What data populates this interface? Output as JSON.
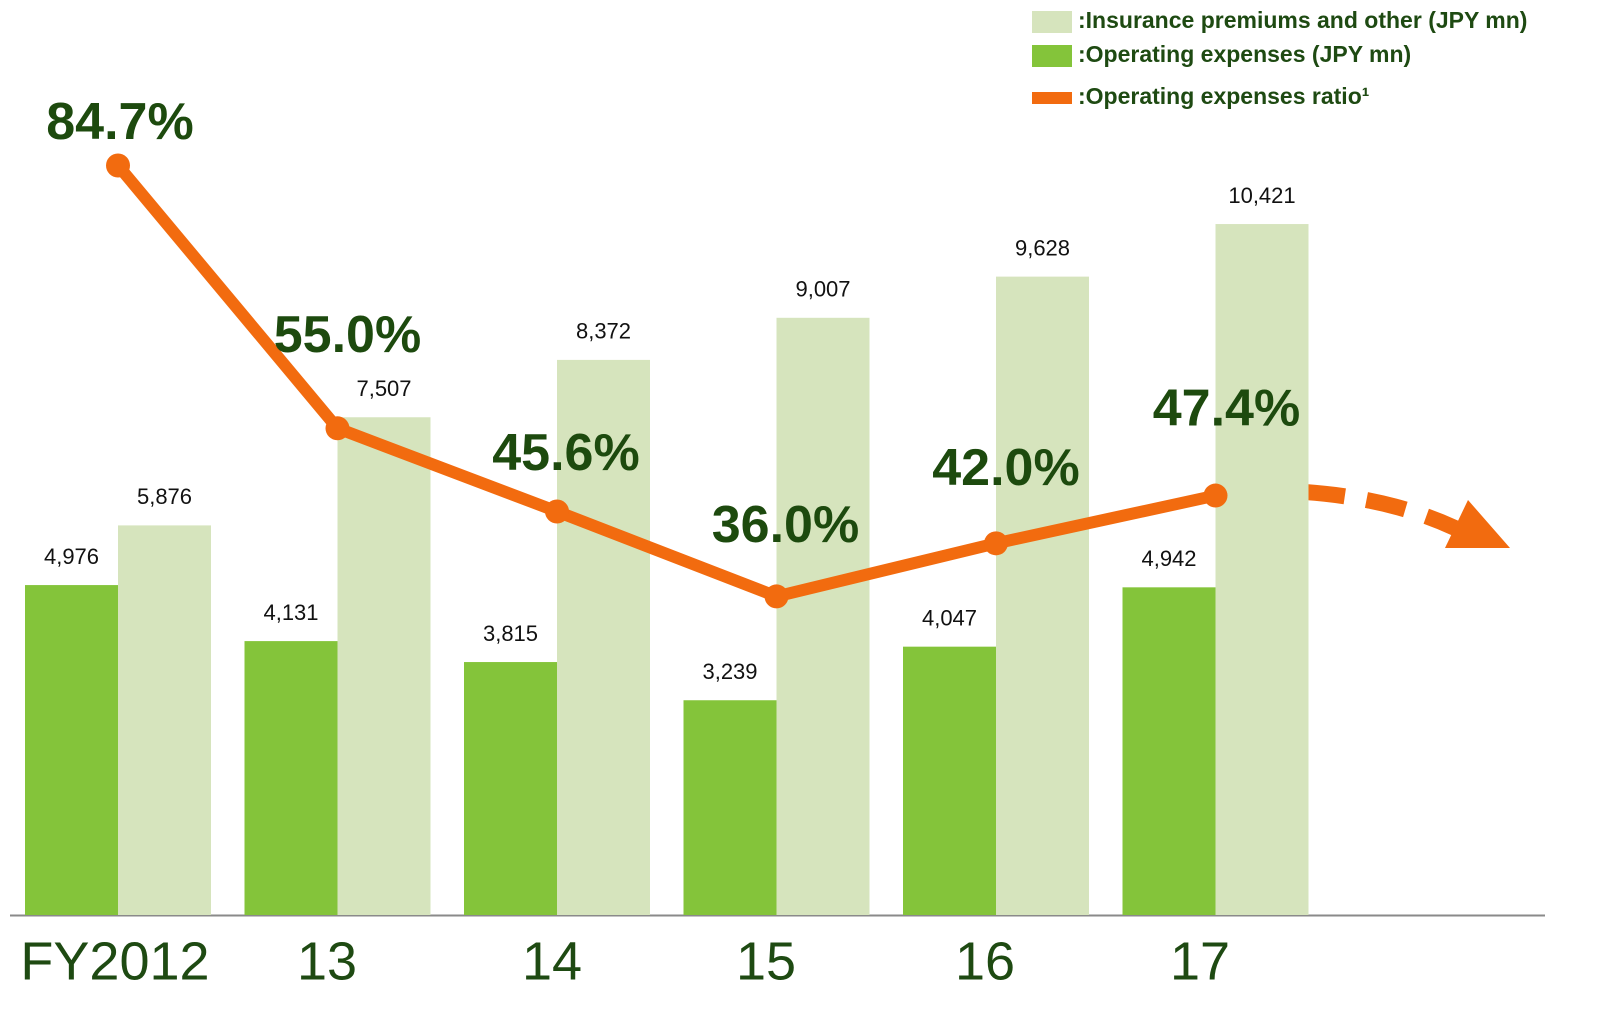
{
  "chart_data": {
    "type": "bar",
    "categories": [
      "FY2012",
      "13",
      "14",
      "15",
      "16",
      "17"
    ],
    "ylim": [
      0,
      13800
    ],
    "y2lim": [
      0,
      103.4
    ],
    "series": [
      {
        "name": ":Operating expenses (JPY mn)",
        "type": "bar",
        "color": "#84c43a",
        "values": [
          4976,
          4131,
          3815,
          3239,
          4047,
          4942
        ],
        "value_labels": [
          "4,976",
          "4,131",
          "3,815",
          "3,239",
          "4,047",
          "4,942"
        ]
      },
      {
        "name": ":Insurance premiums and other (JPY mn)",
        "type": "bar",
        "color": "#d6e4bd",
        "values": [
          5876,
          7507,
          8372,
          9007,
          9628,
          10421
        ],
        "value_labels": [
          "5,876",
          "7,507",
          "8,372",
          "9,007",
          "9,628",
          "10,421"
        ]
      },
      {
        "name": ":Operating expenses ratio¹",
        "type": "line",
        "axis": "y2",
        "color": "#f26b0f",
        "values": [
          84.7,
          55.0,
          45.6,
          36.0,
          42.0,
          47.4
        ],
        "value_labels": [
          "84.7%",
          "55.0%",
          "45.6%",
          "36.0%",
          "42.0%",
          "47.4%"
        ]
      }
    ]
  }
}
